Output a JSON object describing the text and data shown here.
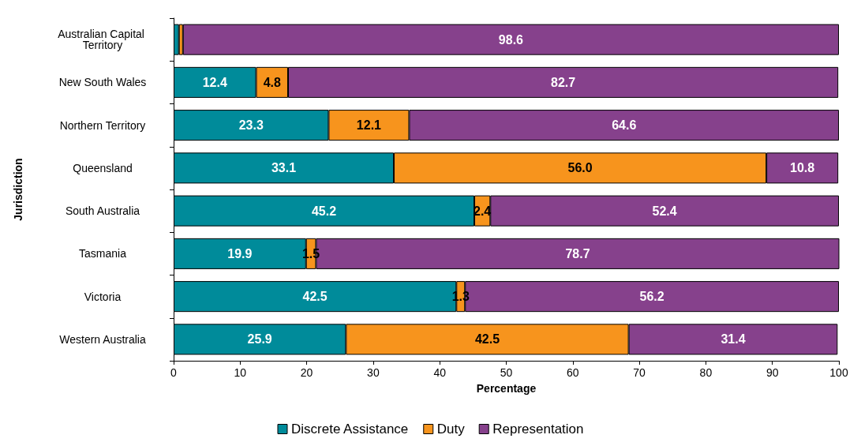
{
  "chart_data": {
    "type": "bar",
    "orientation": "horizontal",
    "stacked": true,
    "xlabel": "Percentage",
    "ylabel": "Jurisdiction",
    "categories": [
      "Australian Capital Territory",
      "New South Wales",
      "Northern Territory",
      "Queensland",
      "South Australia",
      "Tasmania",
      "Victoria",
      "Western Australia"
    ],
    "series": [
      {
        "name": "Discrete Assistance",
        "color": "#008b9a",
        "values": [
          0.8,
          12.4,
          23.3,
          33.1,
          45.2,
          19.9,
          42.5,
          25.9
        ],
        "value_labels": [
          null,
          "12.4",
          "23.3",
          "33.1",
          "45.2",
          "19.9",
          "42.5",
          "25.9"
        ]
      },
      {
        "name": "Duty",
        "color": "#f7941d",
        "values": [
          0.6,
          4.8,
          12.1,
          56.0,
          2.4,
          1.5,
          1.3,
          42.5
        ],
        "value_labels": [
          null,
          "4.8",
          "12.1",
          "56.0",
          "2.4",
          "1.5",
          "1.3",
          "42.5"
        ]
      },
      {
        "name": "Representation",
        "color": "#86418c",
        "values": [
          98.6,
          82.7,
          64.6,
          10.8,
          52.4,
          78.7,
          56.2,
          31.4
        ],
        "value_labels": [
          "98.6",
          "82.7",
          "64.6",
          "10.8",
          "52.4",
          "78.7",
          "56.2",
          "31.4"
        ]
      }
    ],
    "xlim": [
      0,
      100
    ],
    "xticks": [
      0,
      10,
      20,
      30,
      40,
      50,
      60,
      70,
      80,
      90,
      100
    ],
    "grid": false,
    "legend": "bottom"
  }
}
